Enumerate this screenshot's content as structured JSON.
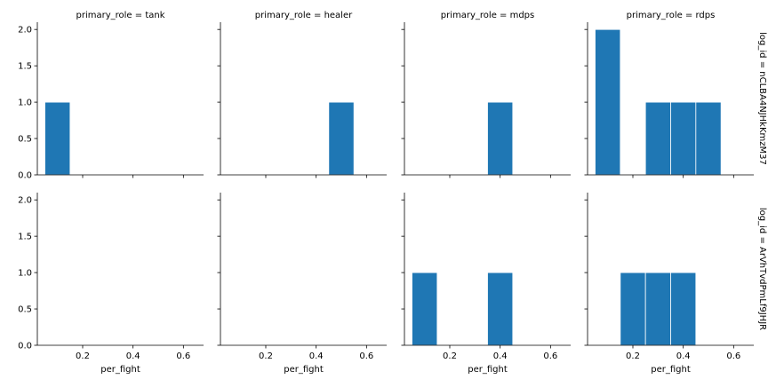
{
  "chart_data": {
    "type": "bar",
    "layout": "facet-grid",
    "col_var": "primary_role",
    "row_var": "log_id",
    "columns": [
      "tank",
      "healer",
      "mdps",
      "rdps"
    ],
    "rows": [
      "nCLBA4NJHkKmzM37",
      "ArVhTvdPmLf9JHJR"
    ],
    "col_titles": [
      "primary_role = tank",
      "primary_role = healer",
      "primary_role = mdps",
      "primary_role = rdps"
    ],
    "row_titles": [
      "log_id = nCLBA4NJHkKmzM37",
      "log_id = ArVhTvdPmLf9JHJR"
    ],
    "xlabel": "per_fight",
    "ylabel": "",
    "xlim": [
      0.02,
      0.68
    ],
    "ylim": [
      0,
      2.1
    ],
    "x_ticks": [
      0.2,
      0.4,
      0.6
    ],
    "x_tick_labels": [
      "0.2",
      "0.4",
      "0.6"
    ],
    "y_ticks": [
      0.0,
      0.5,
      1.0,
      1.5,
      2.0
    ],
    "y_tick_labels": [
      "0.0",
      "0.5",
      "1.0",
      "1.5",
      "2.0"
    ],
    "bar_color": "#1f77b4",
    "panels": [
      {
        "row": 0,
        "col": 0,
        "bins": [
          {
            "x0": 0.05,
            "x1": 0.15,
            "count": 1
          }
        ]
      },
      {
        "row": 0,
        "col": 1,
        "bins": [
          {
            "x0": 0.45,
            "x1": 0.55,
            "count": 1
          }
        ]
      },
      {
        "row": 0,
        "col": 2,
        "bins": [
          {
            "x0": 0.35,
            "x1": 0.45,
            "count": 1
          }
        ]
      },
      {
        "row": 0,
        "col": 3,
        "bins": [
          {
            "x0": 0.05,
            "x1": 0.15,
            "count": 2
          },
          {
            "x0": 0.25,
            "x1": 0.35,
            "count": 1
          },
          {
            "x0": 0.35,
            "x1": 0.45,
            "count": 1
          },
          {
            "x0": 0.45,
            "x1": 0.55,
            "count": 1
          }
        ]
      },
      {
        "row": 1,
        "col": 0,
        "bins": []
      },
      {
        "row": 1,
        "col": 1,
        "bins": []
      },
      {
        "row": 1,
        "col": 2,
        "bins": [
          {
            "x0": 0.05,
            "x1": 0.15,
            "count": 1
          },
          {
            "x0": 0.35,
            "x1": 0.45,
            "count": 1
          }
        ]
      },
      {
        "row": 1,
        "col": 3,
        "bins": [
          {
            "x0": 0.15,
            "x1": 0.25,
            "count": 1
          },
          {
            "x0": 0.25,
            "x1": 0.35,
            "count": 1
          },
          {
            "x0": 0.35,
            "x1": 0.45,
            "count": 1
          }
        ]
      }
    ]
  }
}
